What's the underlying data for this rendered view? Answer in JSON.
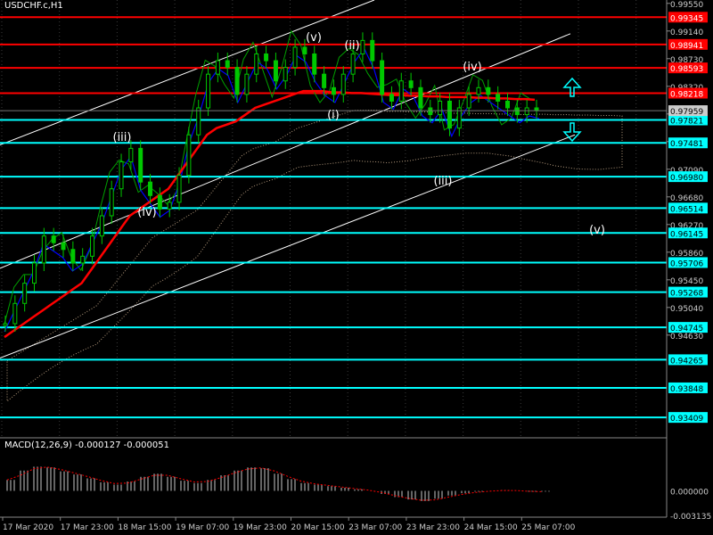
{
  "symbol_title": "USDCHF.c,H1",
  "macd_title": "MACD(12,26,9) -0.000127 -0.000051",
  "colors": {
    "background": "#000000",
    "bull_candle": "#00c800",
    "red_level": "#ff0000",
    "cyan_level": "#00ffff",
    "blue_line": "#0000ff",
    "ma_red": "#ff0000",
    "channel": "#ffffff",
    "cloud": "#ffdab0",
    "current_price_box": "#cccccc"
  },
  "chart_data": {
    "type": "line",
    "title": "USDCHF.c,H1",
    "ylim": [
      0.9312,
      0.996
    ],
    "y_ticks": [
      "0.99550",
      "0.99140",
      "0.98730",
      "0.98320",
      "0.97910",
      "0.97500",
      "0.97090",
      "0.96680",
      "0.96270",
      "0.95860",
      "0.95450",
      "0.95040",
      "0.94630"
    ],
    "x_ticks": [
      "17 Mar 2020",
      "17 Mar 23:00",
      "18 Mar 15:00",
      "19 Mar 07:00",
      "19 Mar 23:00",
      "20 Mar 15:00",
      "23 Mar 07:00",
      "23 Mar 23:00",
      "24 Mar 15:00",
      "25 Mar 07:00"
    ],
    "current_price": "0.97959",
    "red_levels": [
      "0.99345",
      "0.98941",
      "0.98593",
      "0.98218"
    ],
    "cyan_levels": [
      "0.97821",
      "0.97481",
      "0.96980",
      "0.96514",
      "0.96145",
      "0.95706",
      "0.95268",
      "0.94745",
      "0.94265",
      "0.93848",
      "0.93409"
    ],
    "wave_labels": [
      "(v)",
      "(ii)",
      "(iii)",
      "(iv)",
      "(i)",
      "(iv)",
      "(iii)",
      "(v)"
    ],
    "price_series": [
      0.948,
      0.951,
      0.954,
      0.957,
      0.961,
      0.96,
      0.959,
      0.957,
      0.958,
      0.961,
      0.964,
      0.968,
      0.972,
      0.974,
      0.969,
      0.967,
      0.965,
      0.966,
      0.97,
      0.976,
      0.98,
      0.985,
      0.987,
      0.986,
      0.982,
      0.985,
      0.988,
      0.987,
      0.984,
      0.986,
      0.989,
      0.988,
      0.985,
      0.983,
      0.982,
      0.985,
      0.988,
      0.99,
      0.987,
      0.982,
      0.981,
      0.984,
      0.983,
      0.98,
      0.979,
      0.981,
      0.977,
      0.98,
      0.982,
      0.983,
      0.982,
      0.981,
      0.98,
      0.979,
      0.98,
      0.9796
    ],
    "ma_series": [
      0.946,
      0.947,
      0.948,
      0.949,
      0.95,
      0.951,
      0.952,
      0.953,
      0.954,
      0.956,
      0.958,
      0.96,
      0.962,
      0.964,
      0.965,
      0.966,
      0.967,
      0.968,
      0.97,
      0.972,
      0.974,
      0.976,
      0.977,
      0.9775,
      0.978,
      0.979,
      0.98,
      0.9805,
      0.981,
      0.9815,
      0.982,
      0.9825,
      0.9825,
      0.9825,
      0.9823,
      0.9823,
      0.9822,
      0.9822,
      0.9821,
      0.982,
      0.9819,
      0.9819,
      0.9818,
      0.9818,
      0.9817,
      0.9817,
      0.9816,
      0.9816,
      0.9816,
      0.9815,
      0.9815,
      0.9814,
      0.9814,
      0.9813,
      0.9813,
      0.9812
    ],
    "macd_ylim": [
      -0.003135,
      0.0052
    ],
    "macd_ticks": [
      "0.000000",
      "-0.003135"
    ],
    "macd_values": [
      0.0014,
      0.0026,
      0.0031,
      0.003,
      0.0025,
      0.0021,
      0.0016,
      0.0011,
      0.0008,
      0.0012,
      0.0018,
      0.0022,
      0.0018,
      0.0013,
      0.001,
      0.0014,
      0.002,
      0.0026,
      0.003,
      0.0029,
      0.0022,
      0.0015,
      0.001,
      0.0008,
      0.0006,
      0.0004,
      0.0002,
      0.0,
      -0.0004,
      -0.0008,
      -0.0011,
      -0.0013,
      -0.001,
      -0.0006,
      -0.0003,
      -0.0001,
      0.0,
      0.0001,
      0.0,
      -0.0001,
      -0.0001
    ]
  }
}
